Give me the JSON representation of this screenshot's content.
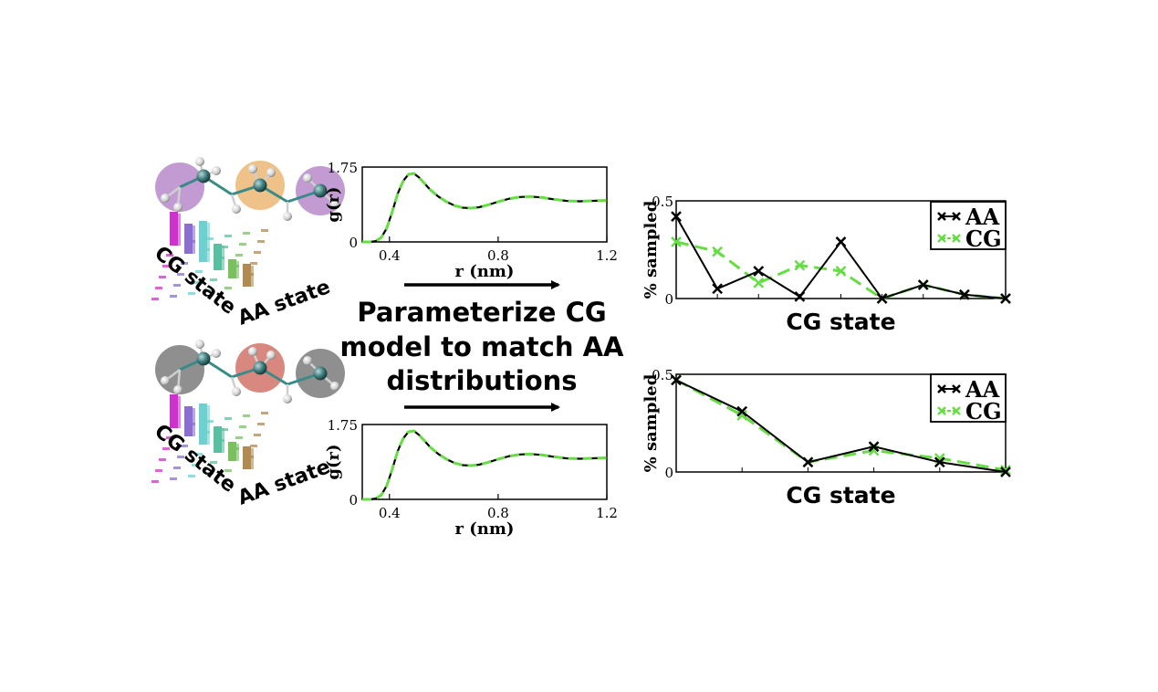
{
  "center_text": {
    "line1": "Parameterize CG",
    "line2": "model to match AA",
    "line3": "distributions"
  },
  "mapping_panels": [
    {
      "bead_colors": [
        "#9b59b6",
        "#e39a3a",
        "#9b59b6"
      ],
      "label_cg": "CG state",
      "label_aa": "AA state"
    },
    {
      "bead_colors": [
        "#444444",
        "#c0392b",
        "#444444"
      ],
      "label_cg": "CG state",
      "label_aa": "AA state"
    }
  ],
  "chart_data": [
    {
      "type": "line",
      "ylabel": "g(r)",
      "xlabel": "r (nm)",
      "xlim": [
        0.3,
        1.2
      ],
      "ylim": [
        0,
        1.75
      ],
      "xticks": [
        "0.4",
        "0.8",
        "1.2"
      ],
      "yticks": [
        "0",
        "1.75"
      ],
      "series": [
        {
          "style": "solid",
          "color": "#000000",
          "x": [
            0.3,
            0.33,
            0.35,
            0.37,
            0.39,
            0.41,
            0.43,
            0.45,
            0.47,
            0.49,
            0.51,
            0.53,
            0.55,
            0.58,
            0.61,
            0.64,
            0.67,
            0.7,
            0.73,
            0.76,
            0.8,
            0.84,
            0.88,
            0.92,
            0.96,
            1.0,
            1.05,
            1.1,
            1.15,
            1.2
          ],
          "y": [
            0,
            0,
            0.02,
            0.1,
            0.32,
            0.7,
            1.12,
            1.42,
            1.58,
            1.6,
            1.5,
            1.36,
            1.22,
            1.06,
            0.94,
            0.85,
            0.8,
            0.79,
            0.81,
            0.86,
            0.94,
            1.01,
            1.05,
            1.06,
            1.04,
            1.0,
            0.96,
            0.95,
            0.96,
            0.97
          ]
        },
        {
          "style": "dashed",
          "color": "#66dd44",
          "x": [
            0.3,
            0.33,
            0.35,
            0.37,
            0.39,
            0.41,
            0.43,
            0.45,
            0.47,
            0.49,
            0.51,
            0.53,
            0.55,
            0.58,
            0.61,
            0.64,
            0.67,
            0.7,
            0.73,
            0.76,
            0.8,
            0.84,
            0.88,
            0.92,
            0.96,
            1.0,
            1.05,
            1.1,
            1.15,
            1.2
          ],
          "y": [
            0,
            0,
            0.02,
            0.1,
            0.32,
            0.7,
            1.12,
            1.42,
            1.58,
            1.6,
            1.5,
            1.36,
            1.22,
            1.06,
            0.94,
            0.85,
            0.8,
            0.79,
            0.81,
            0.86,
            0.94,
            1.01,
            1.05,
            1.06,
            1.04,
            1.0,
            0.96,
            0.95,
            0.96,
            0.97
          ]
        }
      ]
    },
    {
      "type": "line",
      "ylabel": "g(r)",
      "xlabel": "r (nm)",
      "xlim": [
        0.3,
        1.2
      ],
      "ylim": [
        0,
        1.75
      ],
      "xticks": [
        "0.4",
        "0.8",
        "1.2"
      ],
      "yticks": [
        "0",
        "1.75"
      ],
      "series": [
        {
          "style": "solid",
          "color": "#000000",
          "x": [
            0.3,
            0.33,
            0.35,
            0.37,
            0.39,
            0.41,
            0.43,
            0.45,
            0.47,
            0.49,
            0.51,
            0.53,
            0.55,
            0.58,
            0.61,
            0.64,
            0.67,
            0.7,
            0.73,
            0.76,
            0.8,
            0.84,
            0.88,
            0.92,
            0.96,
            1.0,
            1.05,
            1.1,
            1.15,
            1.2
          ],
          "y": [
            0,
            0,
            0.02,
            0.1,
            0.32,
            0.7,
            1.12,
            1.42,
            1.58,
            1.6,
            1.5,
            1.36,
            1.22,
            1.06,
            0.94,
            0.85,
            0.8,
            0.79,
            0.81,
            0.86,
            0.94,
            1.01,
            1.05,
            1.06,
            1.04,
            1.0,
            0.96,
            0.95,
            0.96,
            0.97
          ]
        },
        {
          "style": "dashed",
          "color": "#66dd44",
          "x": [
            0.3,
            0.33,
            0.35,
            0.37,
            0.39,
            0.41,
            0.43,
            0.45,
            0.47,
            0.49,
            0.51,
            0.53,
            0.55,
            0.58,
            0.61,
            0.64,
            0.67,
            0.7,
            0.73,
            0.76,
            0.8,
            0.84,
            0.88,
            0.92,
            0.96,
            1.0,
            1.05,
            1.1,
            1.15,
            1.2
          ],
          "y": [
            0,
            0,
            0.02,
            0.1,
            0.32,
            0.7,
            1.12,
            1.42,
            1.58,
            1.6,
            1.5,
            1.36,
            1.22,
            1.06,
            0.94,
            0.85,
            0.8,
            0.79,
            0.81,
            0.86,
            0.94,
            1.01,
            1.05,
            1.06,
            1.04,
            1.0,
            0.96,
            0.95,
            0.96,
            0.97
          ]
        }
      ]
    },
    {
      "type": "line",
      "ylabel": "% sampled",
      "xlabel": "CG state",
      "xlim": [
        0,
        10
      ],
      "ylim": [
        0,
        0.5
      ],
      "yticks": [
        "0",
        "0.5"
      ],
      "series": [
        {
          "name": "AA",
          "color": "#000000",
          "style": "solid",
          "values": [
            0.42,
            0.05,
            0.14,
            0.01,
            0.29,
            0.0,
            0.07,
            0.02,
            0.0
          ]
        },
        {
          "name": "CG",
          "color": "#66dd44",
          "style": "dashed",
          "values": [
            0.29,
            0.24,
            0.08,
            0.17,
            0.14,
            0.0,
            0.07,
            0.02,
            0.0
          ]
        }
      ]
    },
    {
      "type": "line",
      "ylabel": "% sampled",
      "xlabel": "CG state",
      "xlim": [
        0,
        5
      ],
      "ylim": [
        0,
        0.5
      ],
      "yticks": [
        "0",
        "0.5"
      ],
      "series": [
        {
          "name": "AA",
          "color": "#000000",
          "style": "solid",
          "values": [
            0.47,
            0.31,
            0.05,
            0.13,
            0.05,
            0.0
          ]
        },
        {
          "name": "CG",
          "color": "#66dd44",
          "style": "dashed",
          "values": [
            0.47,
            0.29,
            0.05,
            0.11,
            0.07,
            0.01
          ]
        }
      ]
    }
  ]
}
